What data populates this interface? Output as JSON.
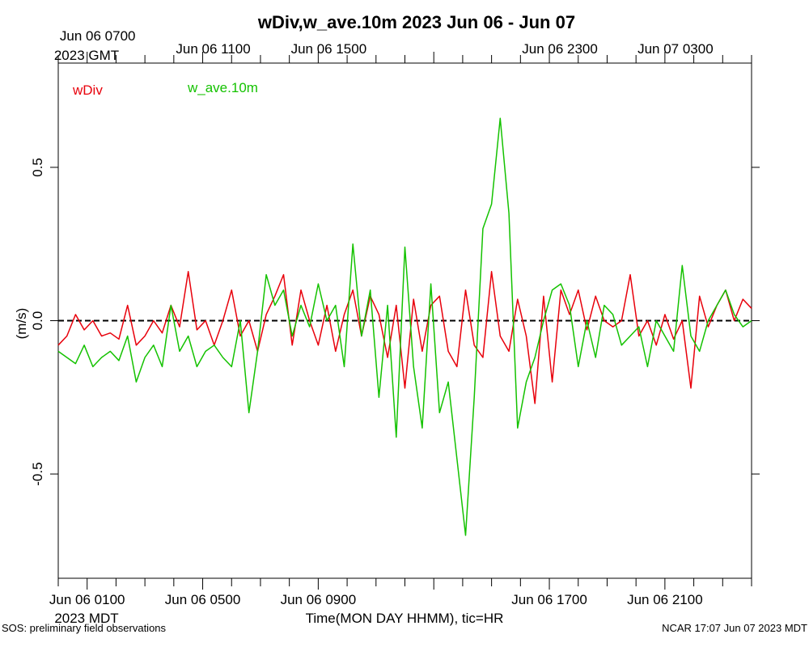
{
  "chart_data": {
    "type": "line",
    "title": "wDiv,w_ave.10m 2023 Jun 06 - Jun 07",
    "xlabel": "Time(MON DAY HHMM), tic=HR",
    "ylabel": "(m/s)",
    "x_unit": "hours since 2023 Jun 05 2300 MDT",
    "xlim": [
      0,
      24
    ],
    "ylim": [
      -0.84,
      0.84
    ],
    "grid": false,
    "legend_position": "top-left",
    "bottom_axis_timezone": "2023 MDT",
    "top_axis_timezone": "2023 GMT",
    "bottom_ticks": [
      {
        "x": 1,
        "label": "Jun 06 0100"
      },
      {
        "x": 5,
        "label": "Jun 06 0500"
      },
      {
        "x": 9,
        "label": "Jun 06 0900"
      },
      {
        "x": 17,
        "label": "Jun 06 1700"
      },
      {
        "x": 21,
        "label": "Jun 06 2100"
      }
    ],
    "top_ticks": [
      {
        "x": 1,
        "label": "Jun 06 0700"
      },
      {
        "x": 5,
        "label": "Jun 06 1100"
      },
      {
        "x": 9,
        "label": "Jun 06 1500"
      },
      {
        "x": 17,
        "label": "Jun 06 2300"
      },
      {
        "x": 21,
        "label": "Jun 07 0300"
      }
    ],
    "y_ticks": [
      {
        "y": -0.5,
        "label": "-0.5"
      },
      {
        "y": 0.0,
        "label": "0.0"
      },
      {
        "y": 0.5,
        "label": "0.5"
      }
    ],
    "zero_line": 0.0,
    "series": [
      {
        "name": "wDiv",
        "color": "#e8000b",
        "x": [
          0.0,
          0.3,
          0.6,
          0.9,
          1.2,
          1.5,
          1.8,
          2.1,
          2.4,
          2.7,
          3.0,
          3.3,
          3.6,
          3.9,
          4.2,
          4.5,
          4.8,
          5.1,
          5.4,
          5.7,
          6.0,
          6.3,
          6.6,
          6.9,
          7.2,
          7.5,
          7.8,
          8.1,
          8.4,
          8.7,
          9.0,
          9.3,
          9.6,
          9.9,
          10.2,
          10.5,
          10.8,
          11.1,
          11.4,
          11.7,
          12.0,
          12.3,
          12.6,
          12.9,
          13.2,
          13.5,
          13.8,
          14.1,
          14.4,
          14.7,
          15.0,
          15.3,
          15.6,
          15.9,
          16.2,
          16.5,
          16.8,
          17.1,
          17.4,
          17.7,
          18.0,
          18.3,
          18.6,
          18.9,
          19.2,
          19.5,
          19.8,
          20.1,
          20.4,
          20.7,
          21.0,
          21.3,
          21.6,
          21.9,
          22.2,
          22.5,
          22.8,
          23.1,
          23.4,
          23.7,
          24.0
        ],
        "values": [
          -0.08,
          -0.05,
          0.02,
          -0.03,
          0.0,
          -0.05,
          -0.04,
          -0.06,
          0.05,
          -0.08,
          -0.05,
          0.0,
          -0.04,
          0.05,
          -0.02,
          0.16,
          -0.03,
          0.0,
          -0.08,
          0.0,
          0.1,
          -0.05,
          0.0,
          -0.1,
          0.02,
          0.08,
          0.15,
          -0.08,
          0.1,
          0.0,
          -0.08,
          0.05,
          -0.1,
          0.02,
          0.1,
          -0.05,
          0.08,
          0.02,
          -0.12,
          0.05,
          -0.22,
          0.07,
          -0.1,
          0.05,
          0.08,
          -0.1,
          -0.15,
          0.1,
          -0.08,
          -0.12,
          0.16,
          -0.05,
          -0.1,
          0.07,
          -0.05,
          -0.27,
          0.08,
          -0.2,
          0.1,
          0.02,
          0.1,
          -0.03,
          0.08,
          0.0,
          -0.02,
          0.0,
          0.15,
          -0.05,
          0.0,
          -0.08,
          0.02,
          -0.06,
          0.0,
          -0.22,
          0.08,
          -0.02,
          0.05,
          0.1,
          0.0,
          0.07,
          0.04
        ]
      },
      {
        "name": "w_ave.10m",
        "color": "#14c200",
        "x": [
          0.0,
          0.3,
          0.6,
          0.9,
          1.2,
          1.5,
          1.8,
          2.1,
          2.4,
          2.7,
          3.0,
          3.3,
          3.6,
          3.9,
          4.2,
          4.5,
          4.8,
          5.1,
          5.4,
          5.7,
          6.0,
          6.3,
          6.6,
          6.9,
          7.2,
          7.5,
          7.8,
          8.1,
          8.4,
          8.7,
          9.0,
          9.3,
          9.6,
          9.9,
          10.2,
          10.5,
          10.8,
          11.1,
          11.4,
          11.7,
          12.0,
          12.3,
          12.6,
          12.9,
          13.2,
          13.5,
          13.8,
          14.1,
          14.4,
          14.7,
          15.0,
          15.3,
          15.6,
          15.9,
          16.2,
          16.5,
          16.8,
          17.1,
          17.4,
          17.7,
          18.0,
          18.3,
          18.6,
          18.9,
          19.2,
          19.5,
          19.8,
          20.1,
          20.4,
          20.7,
          21.0,
          21.3,
          21.6,
          21.9,
          22.2,
          22.5,
          22.8,
          23.1,
          23.4,
          23.7,
          24.0
        ],
        "values": [
          -0.1,
          -0.12,
          -0.14,
          -0.08,
          -0.15,
          -0.12,
          -0.1,
          -0.13,
          -0.05,
          -0.2,
          -0.12,
          -0.08,
          -0.15,
          0.05,
          -0.1,
          -0.05,
          -0.15,
          -0.1,
          -0.08,
          -0.12,
          -0.15,
          0.0,
          -0.3,
          -0.1,
          0.15,
          0.05,
          0.1,
          -0.05,
          0.05,
          -0.02,
          0.12,
          0.0,
          0.05,
          -0.15,
          0.25,
          -0.05,
          0.1,
          -0.25,
          0.05,
          -0.38,
          0.24,
          -0.15,
          -0.35,
          0.12,
          -0.3,
          -0.2,
          -0.45,
          -0.7,
          -0.25,
          0.3,
          0.38,
          0.66,
          0.35,
          -0.35,
          -0.2,
          -0.12,
          0.0,
          0.1,
          0.12,
          0.05,
          -0.15,
          0.0,
          -0.12,
          0.05,
          0.02,
          -0.08,
          -0.05,
          -0.02,
          -0.15,
          0.0,
          -0.05,
          -0.1,
          0.18,
          -0.05,
          -0.1,
          0.0,
          0.05,
          0.1,
          0.02,
          -0.02,
          0.0
        ]
      }
    ]
  },
  "footer": {
    "left": "SOS: preliminary field observations",
    "right": "NCAR 17:07 Jun 07 2023 MDT"
  }
}
